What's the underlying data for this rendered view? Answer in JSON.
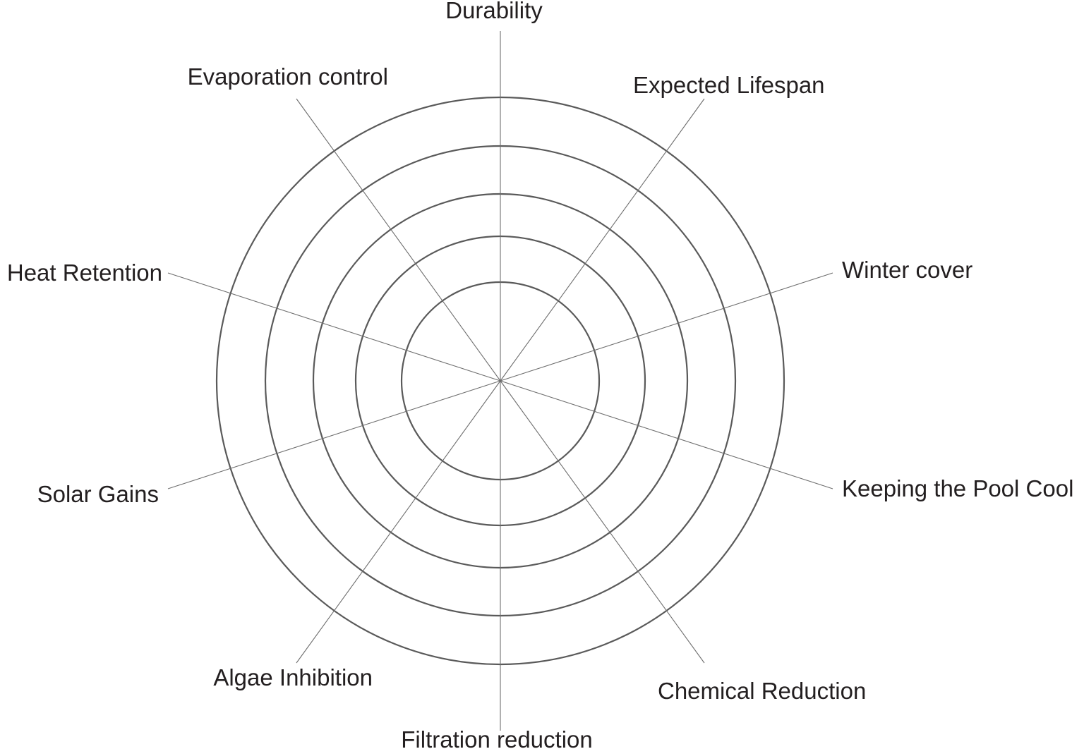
{
  "diagram": {
    "type": "radar-grid",
    "ring_count": 5,
    "axes": [
      {
        "label": "Durability"
      },
      {
        "label": "Expected Lifespan"
      },
      {
        "label": "Winter cover"
      },
      {
        "label": "Keeping the Pool Cool"
      },
      {
        "label": "Chemical Reduction"
      },
      {
        "label": "Filtration reduction"
      },
      {
        "label": "Algae Inhibition"
      },
      {
        "label": "Solar Gains"
      },
      {
        "label": "Heat Retention"
      },
      {
        "label": "Evaporation control"
      }
    ],
    "colors": {
      "ring": "#5a5a5a",
      "spoke": "#6e6e6e",
      "text": "#231f20"
    }
  }
}
